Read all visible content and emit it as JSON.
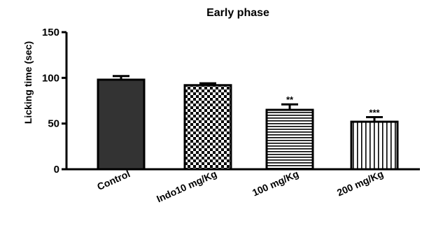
{
  "chart_data": {
    "type": "bar",
    "title": "Early phase",
    "xlabel": "",
    "ylabel": "Licking time (sec)",
    "ylim": [
      0,
      150
    ],
    "yticks": [
      "0",
      "50",
      "100",
      "150"
    ],
    "grid": false,
    "categories": [
      "Control",
      "Indo10 mg/Kg",
      "100 mg/Kg",
      "200 mg/Kg"
    ],
    "values": [
      98,
      92,
      65,
      52
    ],
    "errors": [
      4,
      2,
      6,
      5
    ],
    "annotations": [
      "",
      "",
      "**",
      "***"
    ],
    "fill_patterns": [
      "solid-dark",
      "checkerboard",
      "horizontal-stripes",
      "vertical-stripes"
    ],
    "colors": {
      "bar_solid": "#333333",
      "stroke": "#000000"
    }
  }
}
